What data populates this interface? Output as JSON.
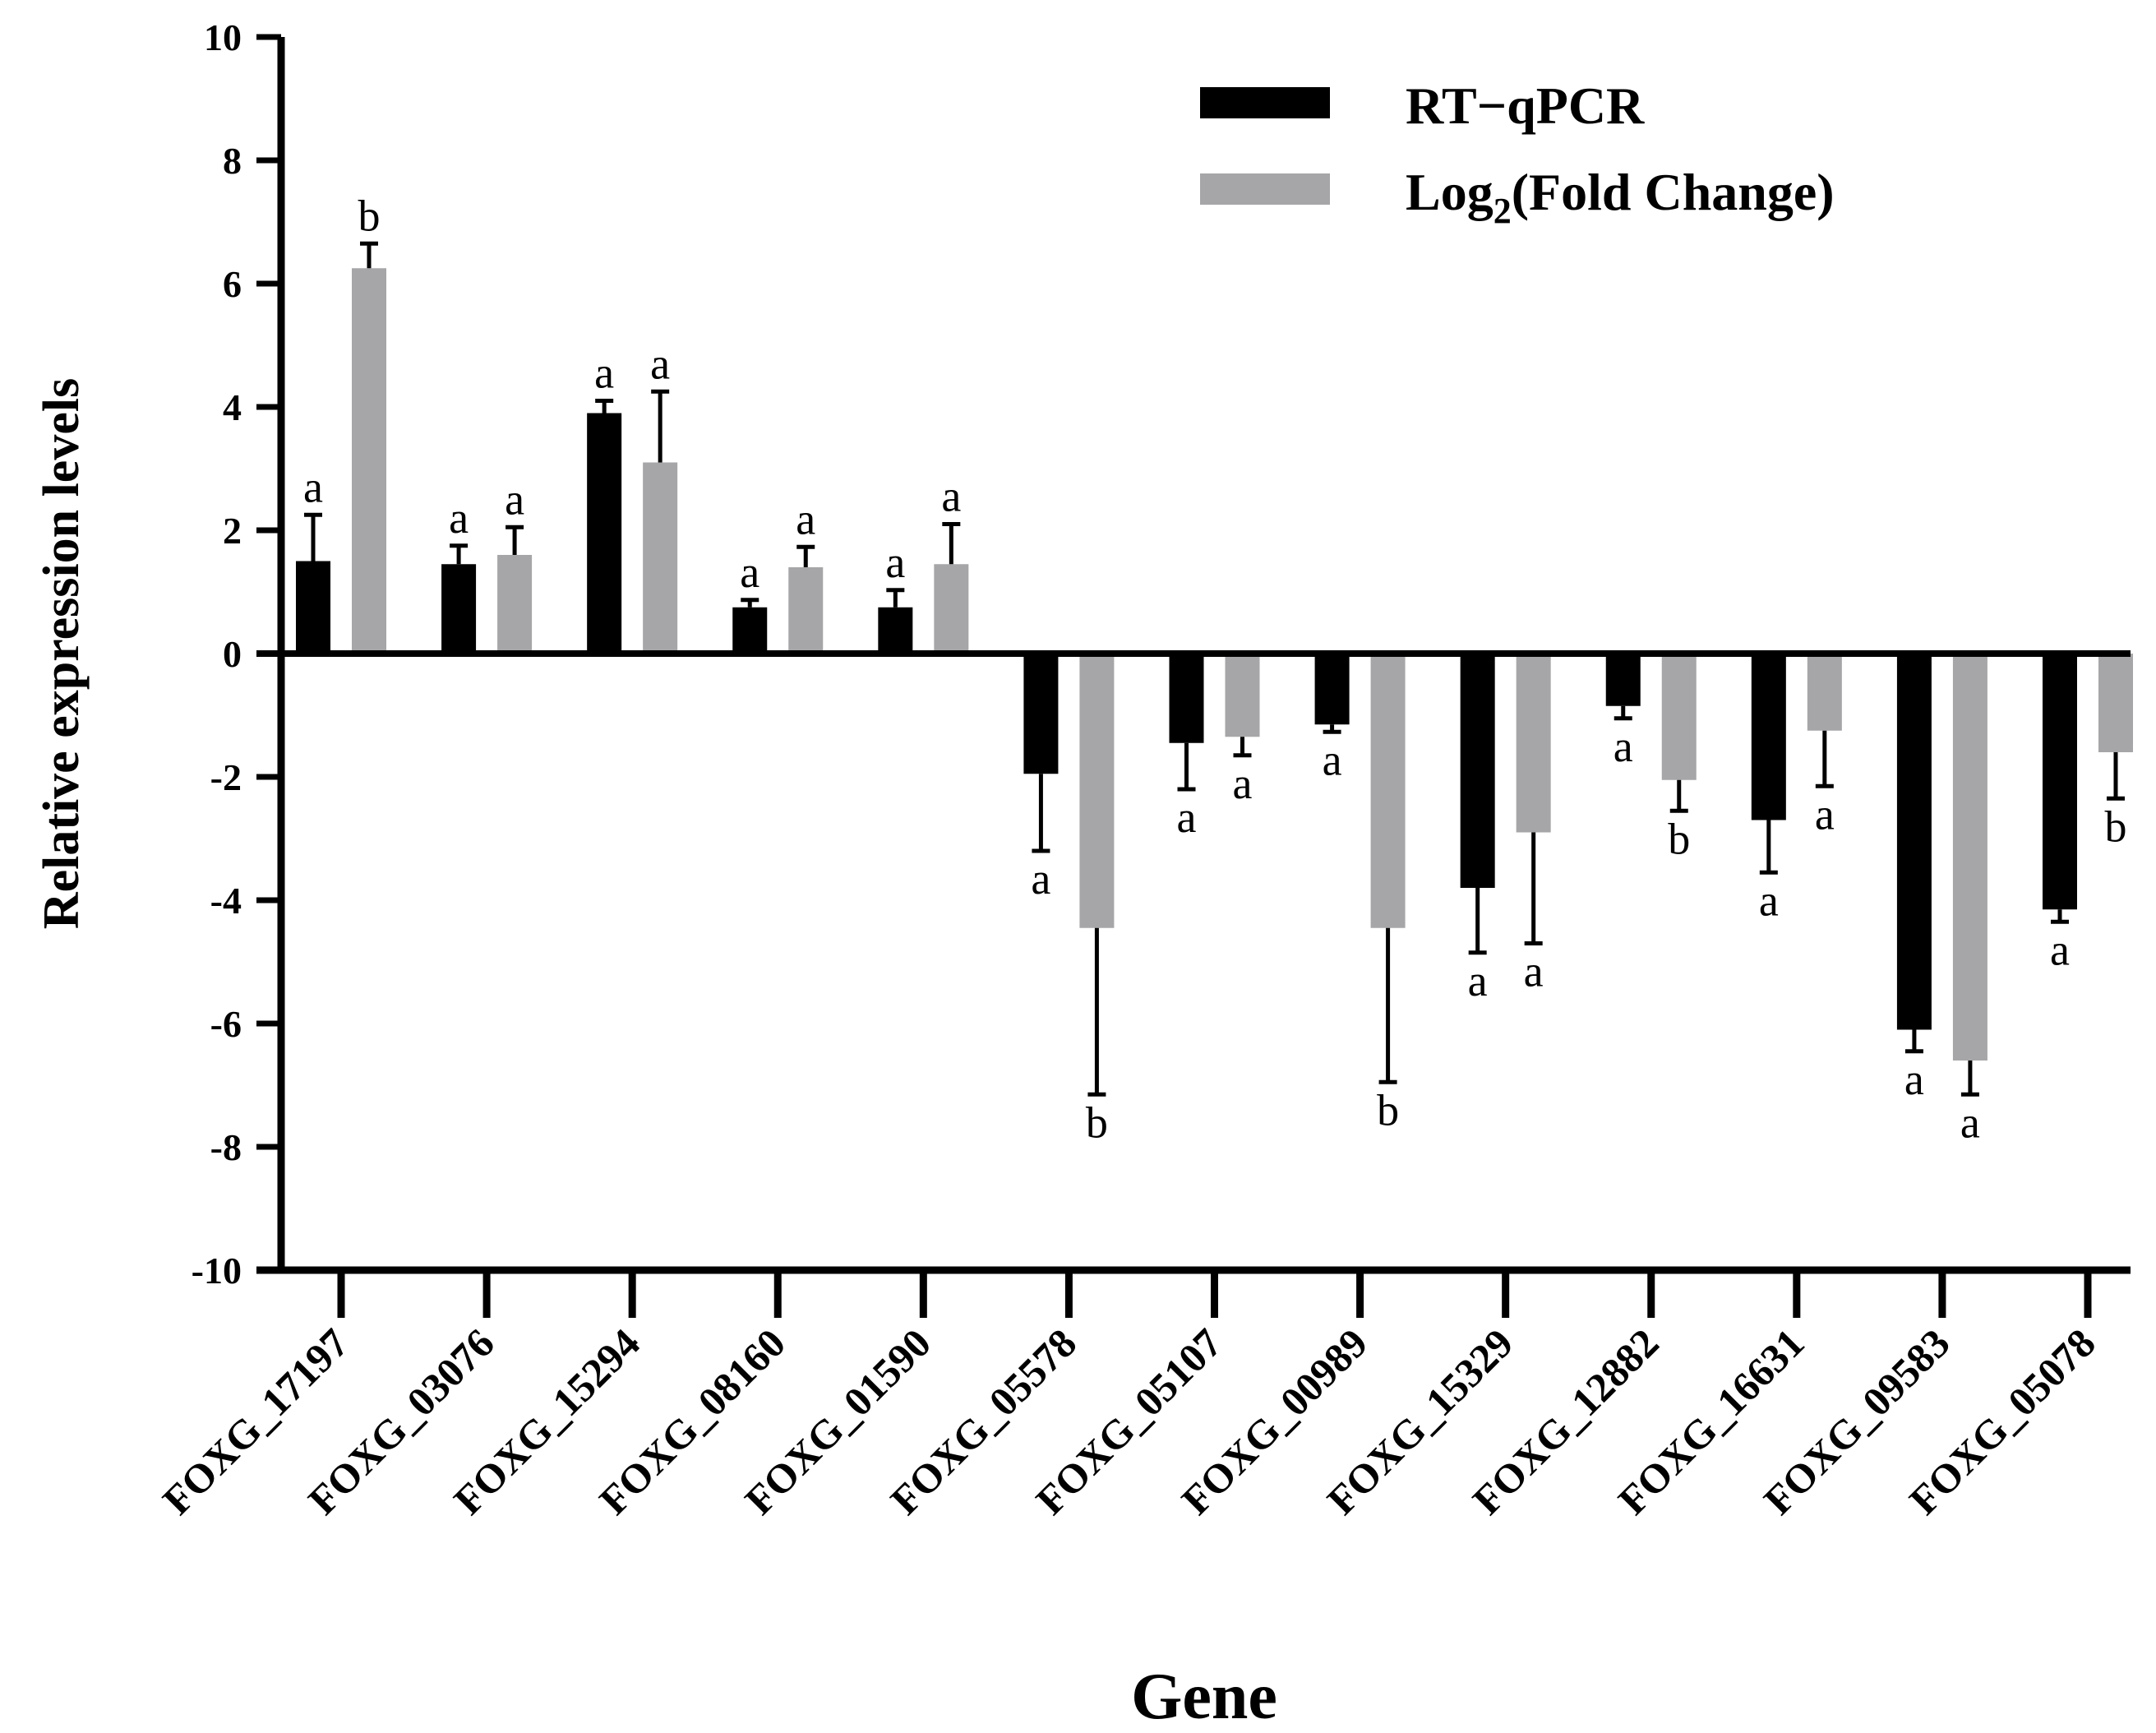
{
  "chart_data": {
    "type": "bar",
    "title": "",
    "xlabel": "Gene",
    "ylabel": "Relative expression  levels",
    "ylim": [
      -10,
      10
    ],
    "yticks": [
      10,
      8,
      6,
      4,
      2,
      0,
      -2,
      -4,
      -6,
      -8,
      -10
    ],
    "grid": false,
    "legend_position": "top-right",
    "categories": [
      "FOXG_17197",
      "FOXG_03076",
      "FOXG_15294",
      "FOXG_08160",
      "FOXG_01590",
      "FOXG_05578",
      "FOXG_05107",
      "FOXG_00989",
      "FOXG_15329",
      "FOXG_12882",
      "FOXG_16631",
      "FOXG_09583",
      "FOXG_05078"
    ],
    "series": [
      {
        "name": "RT−qPCR",
        "color": "#000000",
        "values": [
          1.5,
          1.45,
          3.9,
          0.75,
          0.75,
          -1.95,
          -1.45,
          -1.15,
          -3.8,
          -0.85,
          -2.7,
          -6.1,
          -4.15
        ],
        "errors": [
          0.75,
          0.3,
          0.2,
          0.12,
          0.28,
          1.25,
          0.75,
          0.12,
          1.05,
          0.2,
          0.85,
          0.35,
          0.2
        ],
        "significance": [
          "a",
          "a",
          "a",
          "a",
          "a",
          "a",
          "a",
          "a",
          "a",
          "a",
          "a",
          "a",
          "a"
        ]
      },
      {
        "name": "Log2(Fold Change)",
        "color": "#a6a6a8",
        "values": [
          6.25,
          1.6,
          3.1,
          1.4,
          1.45,
          -4.45,
          -1.35,
          -4.45,
          -2.9,
          -2.05,
          -1.25,
          -6.6,
          -1.6
        ],
        "errors": [
          0.4,
          0.45,
          1.15,
          0.33,
          0.65,
          2.7,
          0.3,
          2.5,
          1.8,
          0.5,
          0.9,
          0.55,
          0.75
        ],
        "significance": [
          "b",
          "a",
          "a",
          "a",
          "a",
          "b",
          "a",
          "b",
          "a",
          "b",
          "a",
          "a",
          "b"
        ]
      }
    ],
    "legend": {
      "entries": [
        {
          "label_main": "RT−qPCR",
          "label_sub": "",
          "label_tail": ""
        },
        {
          "label_main": "Log",
          "label_sub": "2",
          "label_tail": "(Fold Change)"
        }
      ]
    }
  }
}
